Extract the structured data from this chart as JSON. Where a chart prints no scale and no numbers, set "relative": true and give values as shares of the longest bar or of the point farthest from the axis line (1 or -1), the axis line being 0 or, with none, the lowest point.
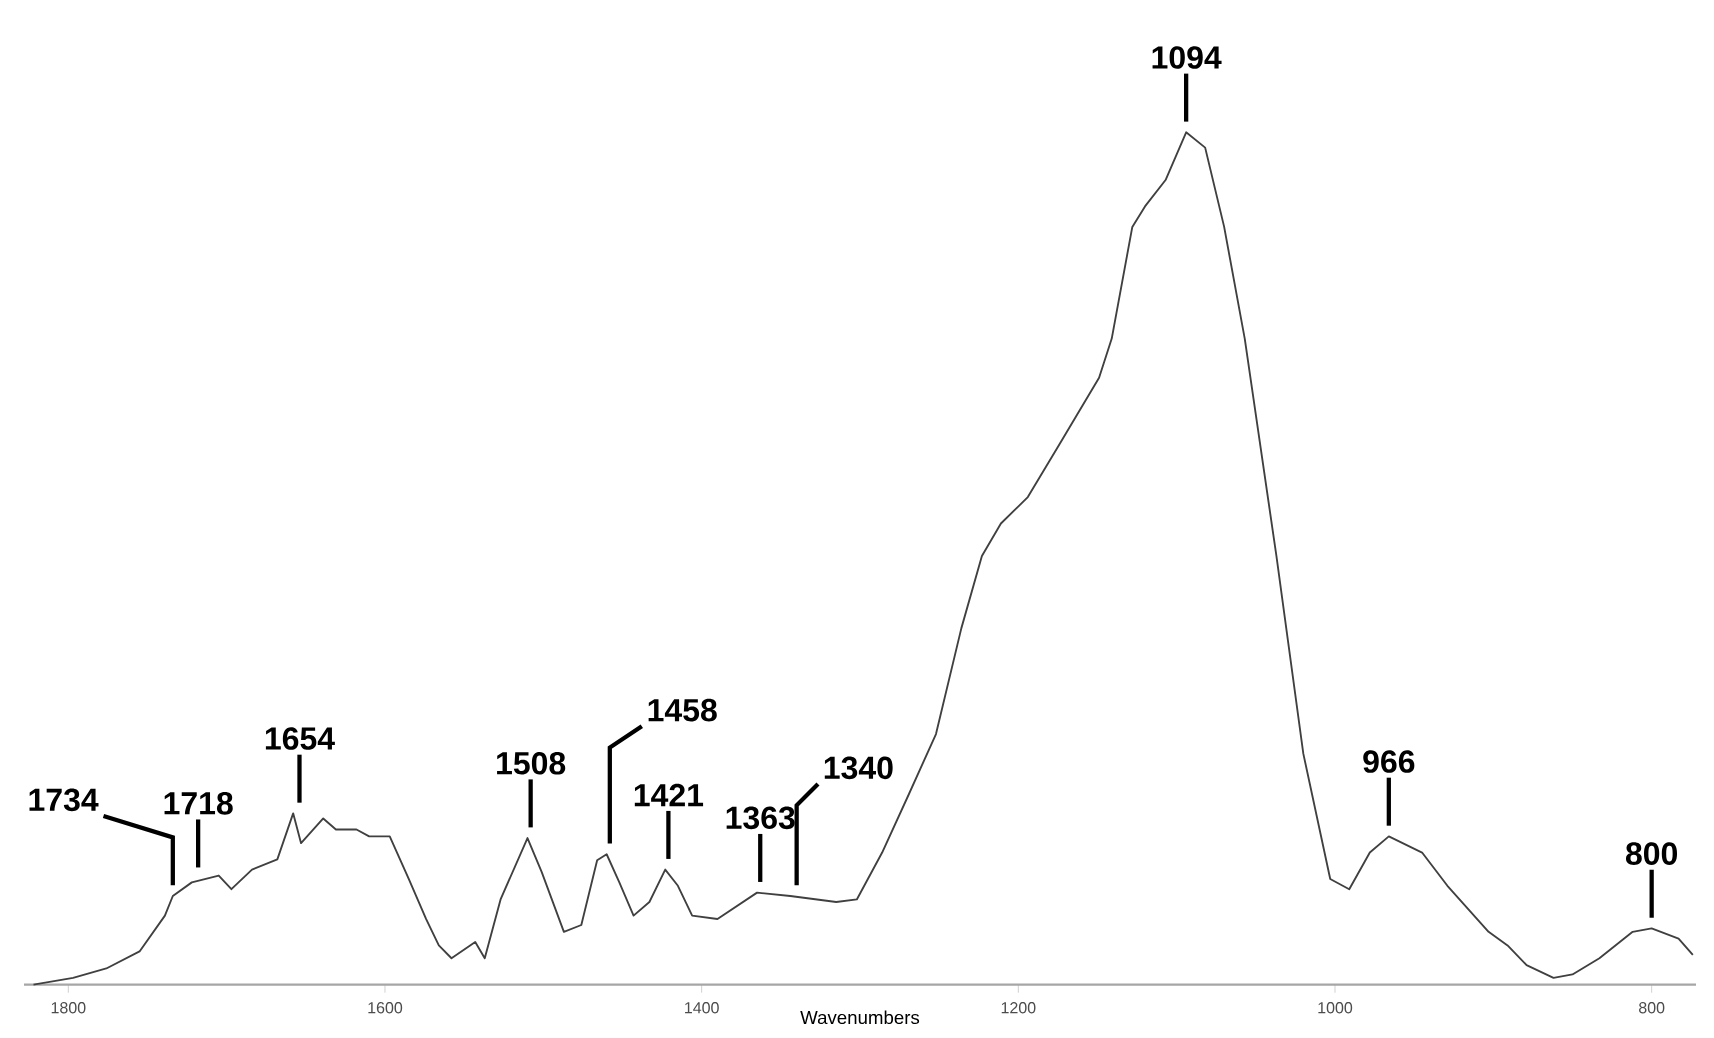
{
  "chart_data": {
    "type": "line",
    "xlabel": "Wavenumbers",
    "relative": true,
    "xlim": [
      1828,
      772
    ],
    "xticks": [
      1800,
      1600,
      1400,
      1200,
      1000,
      800
    ],
    "marker": "none",
    "line_style": "solid",
    "series": [
      {
        "color": "#404040",
        "x": [
          1822,
          1797,
          1776,
          1755,
          1739,
          1734,
          1722,
          1705,
          1697,
          1684,
          1668,
          1658,
          1653,
          1639,
          1631,
          1618,
          1610,
          1597,
          1585,
          1574,
          1566,
          1558,
          1543,
          1537,
          1527,
          1510,
          1501,
          1487,
          1476,
          1466,
          1460,
          1452,
          1443,
          1433,
          1423,
          1415,
          1406,
          1390,
          1365,
          1344,
          1315,
          1302,
          1286,
          1269,
          1252,
          1236,
          1223,
          1211,
          1194,
          1174,
          1149,
          1141,
          1128,
          1120,
          1107,
          1094,
          1082,
          1070,
          1057,
          1037,
          1020,
          1003,
          991,
          978,
          966,
          945,
          929,
          903,
          891,
          879,
          862,
          850,
          833,
          812,
          800,
          783,
          774
        ],
        "values": [
          0.0,
          0.008,
          0.019,
          0.039,
          0.081,
          0.104,
          0.12,
          0.128,
          0.112,
          0.135,
          0.147,
          0.201,
          0.166,
          0.195,
          0.182,
          0.182,
          0.174,
          0.174,
          0.124,
          0.077,
          0.046,
          0.031,
          0.05,
          0.031,
          0.1,
          0.172,
          0.132,
          0.062,
          0.07,
          0.146,
          0.153,
          0.12,
          0.081,
          0.097,
          0.135,
          0.116,
          0.081,
          0.077,
          0.108,
          0.104,
          0.097,
          0.1,
          0.155,
          0.224,
          0.294,
          0.418,
          0.503,
          0.541,
          0.572,
          0.634,
          0.712,
          0.758,
          0.889,
          0.913,
          0.944,
          1.0,
          0.982,
          0.889,
          0.758,
          0.503,
          0.271,
          0.124,
          0.112,
          0.155,
          0.174,
          0.155,
          0.116,
          0.062,
          0.046,
          0.023,
          0.008,
          0.012,
          0.031,
          0.062,
          0.066,
          0.054,
          0.035
        ]
      }
    ],
    "annotations": [
      {
        "text": "1734",
        "x": 1734,
        "y": 0.104
      },
      {
        "text": "1718",
        "x": 1718,
        "y": 0.125
      },
      {
        "text": "1654",
        "x": 1654,
        "y": 0.201
      },
      {
        "text": "1508",
        "x": 1508,
        "y": 0.172
      },
      {
        "text": "1458",
        "x": 1458,
        "y": 0.153
      },
      {
        "text": "1421",
        "x": 1421,
        "y": 0.135
      },
      {
        "text": "1363",
        "x": 1363,
        "y": 0.108
      },
      {
        "text": "1340",
        "x": 1340,
        "y": 0.104
      },
      {
        "text": "1094",
        "x": 1094,
        "y": 1.0
      },
      {
        "text": "966",
        "x": 966,
        "y": 0.174
      },
      {
        "text": "800",
        "x": 800,
        "y": 0.066
      }
    ]
  }
}
